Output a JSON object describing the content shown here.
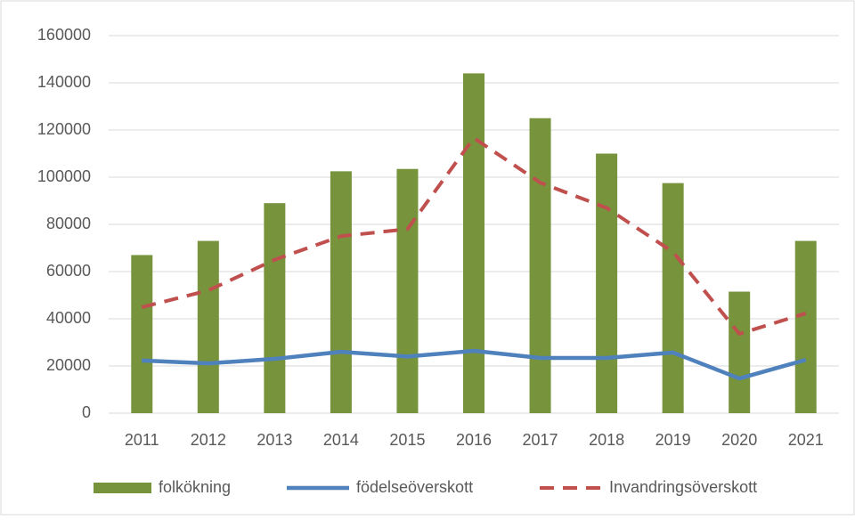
{
  "chart_data": {
    "type": "combo",
    "categories": [
      "2011",
      "2012",
      "2013",
      "2014",
      "2015",
      "2016",
      "2017",
      "2018",
      "2019",
      "2020",
      "2021"
    ],
    "series": [
      {
        "name": "folkökning",
        "type": "bar",
        "color": "#77933c",
        "values": [
          67000,
          73000,
          89000,
          102500,
          103500,
          144000,
          125000,
          110000,
          97500,
          51500,
          73000
        ]
      },
      {
        "name": "födelseöverskott",
        "type": "line",
        "color": "#4f81bd",
        "values": [
          22300,
          21100,
          23000,
          26000,
          24000,
          26400,
          23400,
          23400,
          25700,
          14700,
          22600
        ]
      },
      {
        "name": "Invandringsöverskott",
        "type": "line",
        "dashed": true,
        "color": "#c0504d",
        "values": [
          44900,
          52000,
          65000,
          75000,
          78000,
          116600,
          97700,
          87000,
          68300,
          33600,
          42300
        ]
      }
    ],
    "ylim": [
      0,
      160000
    ],
    "yticks": [
      0,
      20000,
      40000,
      60000,
      80000,
      100000,
      120000,
      140000,
      160000
    ],
    "grid": true,
    "legend": "bottom"
  }
}
